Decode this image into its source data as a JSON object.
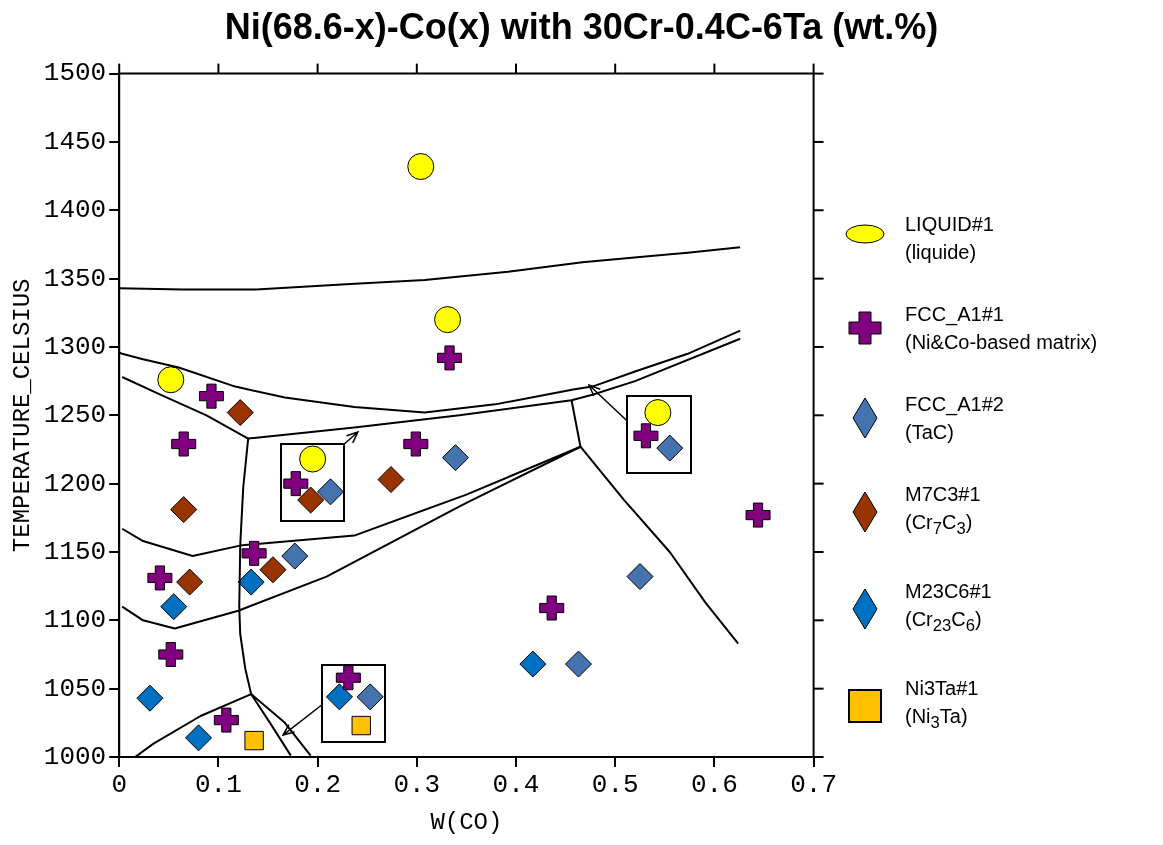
{
  "chart_data": {
    "type": "scatter",
    "title": "Ni(68.6-x)-Co(x) with 30Cr-0.4C-6Ta (wt.%)",
    "xlabel": "W(CO)",
    "ylabel": "TEMPERATURE_CELSIUS",
    "xlim": [
      0,
      0.7
    ],
    "xticks": [
      0,
      0.1,
      0.2,
      0.3,
      0.4,
      0.5,
      0.6,
      0.7
    ],
    "ylim": [
      1000,
      1500
    ],
    "yticks": [
      1000,
      1050,
      1100,
      1150,
      1200,
      1250,
      1300,
      1350,
      1400,
      1450,
      1500
    ],
    "legend": "right",
    "series": [
      {
        "type": "line",
        "marker": "none",
        "color": "#000000",
        "x": [
          0,
          0.064,
          0.138,
          0.233,
          0.308,
          0.392,
          0.467,
          0.573,
          0.626
        ],
        "values": [
          1343,
          1342,
          1342,
          1346,
          1349,
          1355,
          1362,
          1369,
          1373
        ]
      },
      {
        "type": "line",
        "marker": "none",
        "color": "#000000",
        "x": [
          0,
          0.003,
          0.024,
          0.06,
          0.117,
          0.167,
          0.237,
          0.308,
          0.379,
          0.459,
          0.477,
          0.52,
          0.573,
          0.626
        ],
        "values": [
          1296,
          1295,
          1291,
          1285,
          1271,
          1263,
          1256,
          1252,
          1258,
          1269,
          1271,
          1282,
          1295,
          1312
        ]
      },
      {
        "type": "line",
        "marker": "none",
        "color": "#000000",
        "x": [
          0.003,
          0.042,
          0.088,
          0.13,
          0.125,
          0.122,
          0.121,
          0.122,
          0.127,
          0.133,
          0.152,
          0.173
        ],
        "values": [
          1278,
          1265,
          1250,
          1233,
          1197,
          1155,
          1110,
          1090,
          1065,
          1046,
          1025,
          1001
        ]
      },
      {
        "type": "line",
        "marker": "none",
        "color": "#000000",
        "x": [
          0.13,
          0.237,
          0.343,
          0.456,
          0.477,
          0.52,
          0.626
        ],
        "values": [
          1233,
          1241,
          1250,
          1261,
          1265,
          1275,
          1306
        ]
      },
      {
        "type": "line",
        "marker": "none",
        "color": "#000000",
        "x": [
          0.016,
          0.035,
          0.082,
          0.133,
          0.167,
          0.193
        ],
        "values": [
          1000,
          1010,
          1030,
          1046,
          1025,
          1001
        ]
      },
      {
        "type": "line",
        "marker": "none",
        "color": "#000000",
        "x": [
          0.003,
          0.024,
          0.074,
          0.124,
          0.237,
          0.35,
          0.465,
          0.509,
          0.555,
          0.591,
          0.624
        ],
        "values": [
          1167,
          1158,
          1147,
          1155,
          1162,
          1192,
          1227,
          1188,
          1150,
          1113,
          1083
        ]
      },
      {
        "type": "line",
        "marker": "none",
        "color": "#000000",
        "x": [
          0.003,
          0.024,
          0.056,
          0.12,
          0.209,
          0.35,
          0.465,
          0.456
        ],
        "values": [
          1110,
          1100,
          1094,
          1107,
          1132,
          1186,
          1227,
          1261
        ]
      },
      {
        "marker": "circle",
        "name": "LIQUID#1\n(liquide)",
        "color": "#ffff00",
        "x": [
          0.304,
          0.331,
          0.052,
          0.195,
          0.543
        ],
        "values": [
          1432,
          1320,
          1276,
          1218,
          1252
        ]
      },
      {
        "marker": "cross",
        "name": "FCC_A1#1\n(Ni&Co-based matrix)",
        "color": "#800080",
        "x": [
          0.333,
          0.093,
          0.065,
          0.299,
          0.041,
          0.136,
          0.052,
          0.436,
          0.644,
          0.108,
          0.178,
          0.231,
          0.531
        ],
        "values": [
          1292,
          1264,
          1229,
          1229,
          1131,
          1149,
          1075,
          1109,
          1177,
          1027,
          1200,
          1058,
          1235
        ]
      },
      {
        "marker": "diamond",
        "name": "FCC_A1#2\n(TaC)",
        "color": "#4573ad",
        "x": [
          0.339,
          0.177,
          0.463,
          0.525,
          0.213,
          0.253,
          0.555
        ],
        "values": [
          1219,
          1147,
          1068,
          1132,
          1194,
          1044,
          1226
        ]
      },
      {
        "marker": "diamond",
        "name": "M7C3#1\n(Cr$_{7}$C$_{3}$)",
        "color": "#993300",
        "x": [
          0.122,
          0.065,
          0.274,
          0.071,
          0.155,
          0.193
        ],
        "values": [
          1252,
          1181,
          1203,
          1128,
          1137,
          1188
        ]
      },
      {
        "marker": "diamond",
        "name": "M23C6#1\n(Cr$_{23}$C$_{6}$)",
        "color": "#0070c0",
        "x": [
          0.055,
          0.133,
          0.031,
          0.08,
          0.417,
          0.222
        ],
        "values": [
          1110,
          1128,
          1043,
          1014,
          1068,
          1044
        ]
      },
      {
        "marker": "square",
        "name": "Ni3Ta#1\n(Ni$_{3}$Ta)",
        "color": "#ffc000",
        "x": [
          0.136,
          0.244
        ],
        "values": [
          1012,
          1023
        ]
      }
    ]
  }
}
